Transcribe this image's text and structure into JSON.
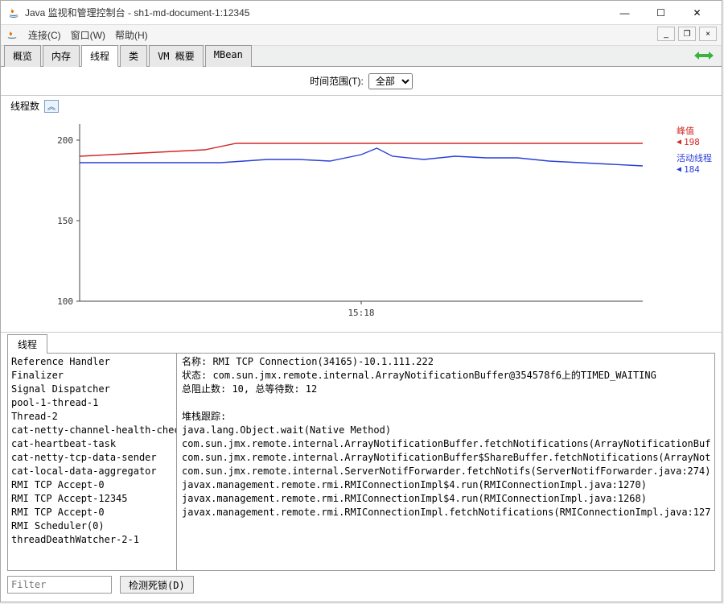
{
  "window": {
    "title": "Java 监视和管理控制台 - sh1-md-document-1:12345"
  },
  "menu": {
    "items": [
      "连接(C)",
      "窗口(W)",
      "帮助(H)"
    ]
  },
  "tabs": {
    "items": [
      "概览",
      "内存",
      "线程",
      "类",
      "VM 概要",
      "MBean"
    ],
    "active_index": 2
  },
  "time_range": {
    "label": "时间范围(T):",
    "value": "全部"
  },
  "chart": {
    "title": "线程数",
    "type": "line",
    "x_label": "15:18",
    "ylim": [
      100,
      210
    ],
    "yticks": [
      100,
      150,
      200
    ],
    "background_color": "#ffffff",
    "axis_color": "#444444",
    "series": [
      {
        "name": "峰值",
        "color": "#d22828",
        "value_label": "198",
        "points": [
          [
            0,
            190
          ],
          [
            40,
            191
          ],
          [
            80,
            192
          ],
          [
            120,
            193
          ],
          [
            160,
            194
          ],
          [
            200,
            198
          ],
          [
            280,
            198
          ],
          [
            360,
            198
          ],
          [
            440,
            198
          ],
          [
            520,
            198
          ],
          [
            600,
            198
          ],
          [
            680,
            198
          ],
          [
            720,
            198
          ]
        ]
      },
      {
        "name": "活动线程",
        "color": "#2a3fd8",
        "value_label": "184",
        "points": [
          [
            0,
            186
          ],
          [
            60,
            186
          ],
          [
            120,
            186
          ],
          [
            180,
            186
          ],
          [
            240,
            188
          ],
          [
            280,
            188
          ],
          [
            320,
            187
          ],
          [
            360,
            191
          ],
          [
            380,
            195
          ],
          [
            400,
            190
          ],
          [
            440,
            188
          ],
          [
            480,
            190
          ],
          [
            520,
            189
          ],
          [
            560,
            189
          ],
          [
            600,
            187
          ],
          [
            640,
            186
          ],
          [
            680,
            185
          ],
          [
            720,
            184
          ]
        ]
      }
    ]
  },
  "threads_tab_label": "线程",
  "thread_list": [
    "Reference Handler",
    "Finalizer",
    "Signal Dispatcher",
    "pool-1-thread-1",
    "Thread-2",
    "cat-netty-channel-health-check",
    "cat-heartbeat-task",
    "cat-netty-tcp-data-sender",
    "cat-local-data-aggregator",
    "RMI TCP Accept-0",
    "RMI TCP Accept-12345",
    "RMI TCP Accept-0",
    "RMI Scheduler(0)",
    "threadDeathWatcher-2-1"
  ],
  "detail": {
    "name_label": "名称:",
    "name_value": "RMI TCP Connection(34165)-10.1.111.222",
    "state_label": "状态:",
    "state_value": "com.sun.jmx.remote.internal.ArrayNotificationBuffer@354578f6上的TIMED_WAITING",
    "blocked_label": "总阻止数: 10, 总等待数: 12",
    "stack_label": "堆栈跟踪:",
    "stack": [
      "java.lang.Object.wait(Native Method)",
      "com.sun.jmx.remote.internal.ArrayNotificationBuffer.fetchNotifications(ArrayNotificationBuf",
      "com.sun.jmx.remote.internal.ArrayNotificationBuffer$ShareBuffer.fetchNotifications(ArrayNot",
      "com.sun.jmx.remote.internal.ServerNotifForwarder.fetchNotifs(ServerNotifForwarder.java:274)",
      "javax.management.remote.rmi.RMIConnectionImpl$4.run(RMIConnectionImpl.java:1270)",
      "javax.management.remote.rmi.RMIConnectionImpl$4.run(RMIConnectionImpl.java:1268)",
      "javax.management.remote.rmi.RMIConnectionImpl.fetchNotifications(RMIConnectionImpl.java:127"
    ]
  },
  "filter_placeholder": "Filter",
  "deadlock_button": "检测死锁(D)"
}
